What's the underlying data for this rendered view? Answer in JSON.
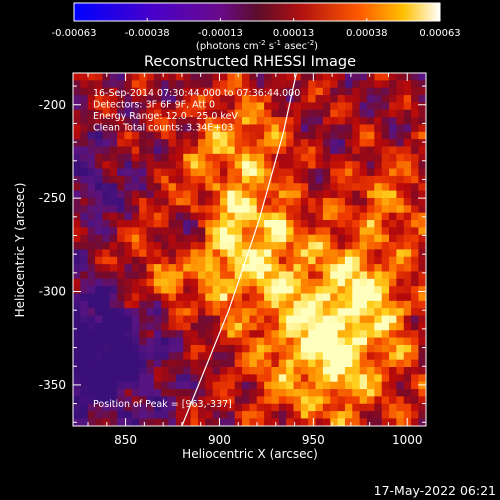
{
  "chart_data": {
    "type": "heatmap",
    "title": "Reconstructed RHESSI Image",
    "xlabel": "Heliocentric X (arcsec)",
    "ylabel": "Heliocentric Y (arcsec)",
    "xlim": [
      822,
      1010
    ],
    "ylim": [
      -372,
      -183
    ],
    "xticks": [
      850,
      900,
      950,
      1000
    ],
    "yticks": [
      -200,
      -250,
      -300,
      -350
    ],
    "colorbar": {
      "ticks": [
        "-0.00063",
        "-0.00038",
        "-0.00013",
        "0.00013",
        "0.00038",
        "0.00063"
      ],
      "label_html": "(photons cm<tspan dy='-4' font-size='7'>-2</tspan><tspan dy='4'> s</tspan><tspan dy='-4' font-size='7'>-1</tspan><tspan dy='4'> asec</tspan><tspan dy='-4' font-size='7'>-2</tspan><tspan dy='4'>)</tspan>",
      "range": [
        -0.00063,
        0.00063
      ]
    },
    "annotations": [
      "16-Sep-2014 07:30:44.000 to 07:36:44.000",
      "Detectors: 3F 6F 9F, Att 0",
      "Energy Range: 12.0 - 25.0 keV",
      "Clean     Total counts: 3.34E+03"
    ],
    "peak_label": "Position of Peak = [963,-337]",
    "peak": [
      963,
      -337
    ],
    "limb_curve": [
      [
        880,
        -372
      ],
      [
        905,
        -310
      ],
      [
        921,
        -262
      ],
      [
        934,
        -215
      ],
      [
        941,
        -183
      ]
    ],
    "timestamp": "17-May-2022 06:21"
  }
}
